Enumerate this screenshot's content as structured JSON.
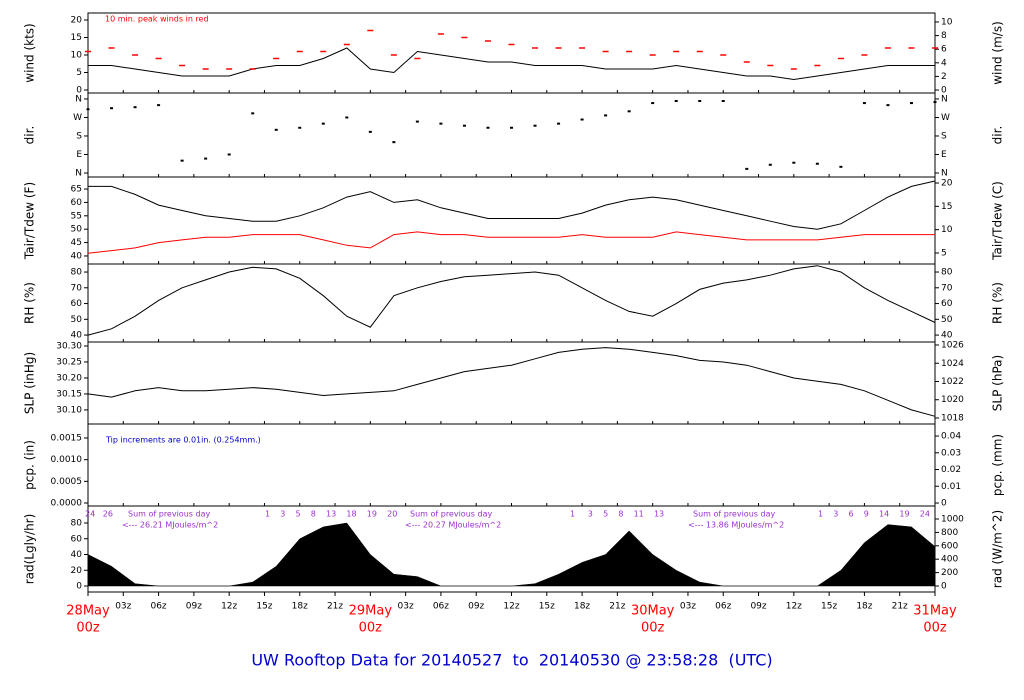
{
  "chart_data": {
    "type": "meteogram",
    "title": "UW Rooftop Data for 20140527  to  20140530 @ 23:58:28  (UTC)",
    "x": [
      0,
      2,
      4,
      6,
      8,
      10,
      12,
      14,
      16,
      18,
      20,
      22,
      24,
      26,
      28,
      30,
      32,
      34,
      36,
      38,
      40,
      42,
      44,
      46,
      48,
      50,
      52,
      54,
      56,
      58,
      60,
      62,
      64,
      66,
      68,
      70,
      72
    ],
    "xlim": [
      0,
      72
    ],
    "xticks": [
      {
        "value": 0,
        "label": "28May",
        "sublabel": "00z"
      },
      {
        "value": 3,
        "label": "03z"
      },
      {
        "value": 6,
        "label": "06z"
      },
      {
        "value": 9,
        "label": "09z"
      },
      {
        "value": 12,
        "label": "12z"
      },
      {
        "value": 15,
        "label": "15z"
      },
      {
        "value": 18,
        "label": "18z"
      },
      {
        "value": 21,
        "label": "21z"
      },
      {
        "value": 24,
        "label": "29May",
        "sublabel": "00z"
      },
      {
        "value": 27,
        "label": "03z"
      },
      {
        "value": 30,
        "label": "06z"
      },
      {
        "value": 33,
        "label": "09z"
      },
      {
        "value": 36,
        "label": "12z"
      },
      {
        "value": 39,
        "label": "15z"
      },
      {
        "value": 42,
        "label": "18z"
      },
      {
        "value": 45,
        "label": "21z"
      },
      {
        "value": 48,
        "label": "30May",
        "sublabel": "00z"
      },
      {
        "value": 51,
        "label": "03z"
      },
      {
        "value": 54,
        "label": "06z"
      },
      {
        "value": 57,
        "label": "09z"
      },
      {
        "value": 60,
        "label": "12z"
      },
      {
        "value": 63,
        "label": "15z"
      },
      {
        "value": 66,
        "label": "18z"
      },
      {
        "value": 69,
        "label": "21z"
      },
      {
        "value": 72,
        "label": "31May",
        "sublabel": "00z"
      }
    ],
    "panels": [
      {
        "ylabel": "wind (kts)",
        "y2label": "wind (m/s)",
        "ylim": [
          -0.86,
          22
        ],
        "yticks": [
          0,
          5,
          10,
          15,
          20
        ],
        "y2lim": [
          -0.44,
          11.32
        ],
        "y2ticks": [
          0,
          2,
          4,
          6,
          8,
          10
        ],
        "annotations": [
          "10 min. peak winds in red"
        ],
        "annotation_color": "#ff0000",
        "series": [
          {
            "type": "line",
            "color": "#000000",
            "values": [
              7,
              7,
              6,
              5,
              4,
              4,
              4,
              6,
              7,
              7,
              9,
              12,
              6,
              5,
              11,
              10,
              9,
              8,
              8,
              7,
              7,
              7,
              6,
              6,
              6,
              7,
              6,
              5,
              4,
              4,
              3,
              4,
              5,
              6,
              7,
              7,
              7
            ]
          },
          {
            "type": "dash",
            "color": "#ff0000",
            "values": [
              11,
              12,
              10,
              9,
              7,
              6,
              6,
              6,
              9,
              11,
              11,
              13,
              17,
              10,
              9,
              16,
              15,
              14,
              13,
              12,
              12,
              12,
              11,
              11,
              10,
              11,
              11,
              10,
              8,
              7,
              6,
              7,
              9,
              10,
              12,
              12,
              12
            ]
          }
        ]
      },
      {
        "ylabel": "dir.",
        "y2label": "dir.",
        "ylim": [
          -19.5,
          389
        ],
        "yticks": [
          {
            "value": 0,
            "label": "N"
          },
          {
            "value": 90,
            "label": "E"
          },
          {
            "value": 180,
            "label": "S"
          },
          {
            "value": 270,
            "label": "W"
          },
          {
            "value": 360,
            "label": "N"
          }
        ],
        "y2lim": [
          -19.5,
          389
        ],
        "y2ticks": [
          {
            "value": 0,
            "label": "N"
          },
          {
            "value": 90,
            "label": "E"
          },
          {
            "value": 180,
            "label": "S"
          },
          {
            "value": 270,
            "label": "W"
          },
          {
            "value": 360,
            "label": "N"
          }
        ],
        "series": [
          {
            "type": "dots",
            "color": "#000000",
            "values": [
              310,
              315,
              320,
              330,
              60,
              70,
              90,
              290,
              210,
              220,
              240,
              270,
              200,
              150,
              250,
              240,
              230,
              220,
              220,
              230,
              240,
              260,
              280,
              300,
              340,
              350,
              350,
              350,
              20,
              40,
              50,
              45,
              30,
              340,
              330,
              340,
              345
            ]
          }
        ]
      },
      {
        "ylabel": "Tair/Tdew (F)",
        "y2label": "Tair/Tdew (C)",
        "ylim": [
          37.0,
          69.5
        ],
        "yticks": [
          40,
          45,
          50,
          55,
          60,
          65
        ],
        "y2lim": [
          2.64,
          21.29
        ],
        "y2ticks": [
          5,
          10,
          15,
          20
        ],
        "series": [
          {
            "type": "line",
            "color": "#000000",
            "values": [
              66,
              66,
              63,
              59,
              57,
              55,
              54,
              53,
              53,
              55,
              58,
              62,
              64,
              60,
              61,
              58,
              56,
              54,
              54,
              54,
              54,
              56,
              59,
              61,
              62,
              61,
              59,
              57,
              55,
              53,
              51,
              50,
              52,
              57,
              62,
              66,
              68
            ]
          },
          {
            "type": "line",
            "color": "#ff0000",
            "values": [
              41,
              42,
              43,
              45,
              46,
              47,
              47,
              48,
              48,
              48,
              46,
              44,
              43,
              48,
              49,
              48,
              48,
              47,
              47,
              47,
              47,
              48,
              47,
              47,
              47,
              49,
              48,
              47,
              46,
              46,
              46,
              46,
              47,
              48,
              48,
              48,
              48
            ]
          }
        ]
      },
      {
        "ylabel": "RH (%)",
        "y2label": "RH (%)",
        "ylim": [
          35.6,
          85.1
        ],
        "yticks": [
          40,
          50,
          60,
          70,
          80
        ],
        "y2lim": [
          35.6,
          85.1
        ],
        "y2ticks": [
          40,
          50,
          60,
          70,
          80
        ],
        "series": [
          {
            "type": "line",
            "color": "#000000",
            "values": [
              40,
              44,
              52,
              62,
              70,
              75,
              80,
              83,
              82,
              76,
              65,
              52,
              45,
              65,
              70,
              74,
              77,
              78,
              79,
              80,
              78,
              70,
              62,
              55,
              52,
              60,
              69,
              73,
              75,
              78,
              82,
              84,
              80,
              70,
              62,
              55,
              48
            ]
          }
        ]
      },
      {
        "ylabel": "SLP (inHg)",
        "y2label": "SLP (hPa)",
        "ylim": [
          30.056,
          30.3125
        ],
        "yticks": [
          {
            "value": 30.1,
            "label": "30.10"
          },
          {
            "value": 30.15,
            "label": "30.15"
          },
          {
            "value": 30.2,
            "label": "30.20"
          },
          {
            "value": 30.25,
            "label": "30.25"
          },
          {
            "value": 30.3,
            "label": "30.30"
          }
        ],
        "y2lim": [
          1017.34,
          1026.33
        ],
        "y2ticks": [
          1018,
          1020,
          1022,
          1024,
          1026
        ],
        "series": [
          {
            "type": "line",
            "color": "#000000",
            "values": [
              30.15,
              30.14,
              30.16,
              30.17,
              30.16,
              30.16,
              30.165,
              30.17,
              30.165,
              30.155,
              30.145,
              30.15,
              30.155,
              30.16,
              30.18,
              30.2,
              30.22,
              30.23,
              30.24,
              30.26,
              30.28,
              30.29,
              30.295,
              30.29,
              30.28,
              30.27,
              30.255,
              30.25,
              30.24,
              30.22,
              30.2,
              30.19,
              30.18,
              30.16,
              30.13,
              30.1,
              30.08
            ]
          }
        ]
      },
      {
        "ylabel": "pcp. (in)",
        "y2label": "pcp. (mm)",
        "ylim": [
          -6.9e-05,
          0.001823
        ],
        "yticks": [
          {
            "value": 0,
            "label": "0.0000"
          },
          {
            "value": 0.0005,
            "label": "0.0005"
          },
          {
            "value": 0.001,
            "label": "0.0010"
          },
          {
            "value": 0.0015,
            "label": "0.0015"
          }
        ],
        "y2lim": [
          -0.0018,
          0.0472
        ],
        "y2ticks": [
          0,
          0.01,
          0.02,
          0.03,
          0.04
        ],
        "annotations": [
          "Tip increments are 0.01in. (0.254mm.)"
        ],
        "annotation_color": "#0000cc",
        "series": []
      },
      {
        "ylabel": "rad(Lgly/hr)",
        "y2label": "rad (W/m^2)",
        "ylim": [
          -7.6,
          101.6
        ],
        "yticks": [
          0,
          20,
          40,
          60,
          80
        ],
        "y2lim": [
          -89.6,
          1194
        ],
        "y2ticks": [
          0,
          200,
          400,
          600,
          800,
          1000
        ],
        "annotations": [
          "24   26",
          "Sum of previous day",
          "<--- 26.21 MJoules/m^2",
          "1    3    5    8    13    18    19    20",
          "Sum of previous day",
          "<--- 20.27 MJoules/m^2",
          "1     3    5    8    11    13",
          "Sum of previous day",
          "<--- 13.86 MJoules/m^2",
          "1    3    6    9    14    19    24"
        ],
        "annotation_color": "#9b30d0",
        "series": [
          {
            "type": "area",
            "color": "#000000",
            "values": [
              40,
              25,
              3,
              0,
              0,
              0,
              0,
              5,
              25,
              60,
              75,
              80,
              40,
              15,
              12,
              0,
              0,
              0,
              0,
              3,
              15,
              30,
              40,
              70,
              40,
              20,
              5,
              0,
              0,
              0,
              0,
              0,
              20,
              55,
              78,
              75,
              50
            ]
          }
        ]
      }
    ]
  }
}
